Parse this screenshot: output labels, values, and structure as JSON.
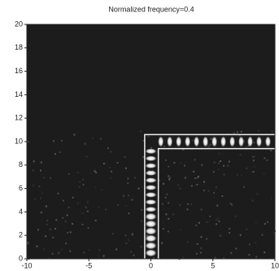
{
  "chart_data": {
    "type": "field",
    "title": "Normalized frequency=0.4",
    "xlim": [
      -10,
      10
    ],
    "xticks": [
      -10,
      -5,
      0,
      5,
      10
    ],
    "ylim": [
      0,
      20
    ],
    "yticks": [
      0,
      2,
      4,
      6,
      8,
      10,
      12,
      14,
      16,
      18,
      20
    ]
  }
}
